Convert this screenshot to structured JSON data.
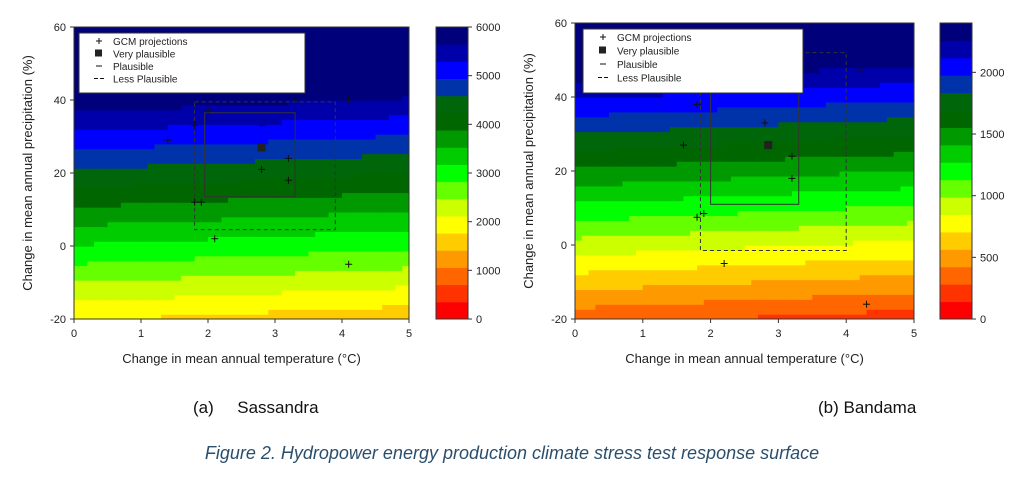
{
  "figure_caption": "Figure 2. Hydropower energy production climate stress test response surface",
  "colors": {
    "scale": [
      "#ff0000",
      "#ff3300",
      "#ff6600",
      "#ff9900",
      "#ffcc00",
      "#ffff00",
      "#ccff00",
      "#66ff00",
      "#00ff00",
      "#00cc00",
      "#009900",
      "#006600",
      "#00660a",
      "#0033aa",
      "#0000ff",
      "#0000aa",
      "#00007a"
    ]
  },
  "legend_items": [
    {
      "symbol": "+",
      "label": "GCM projections"
    },
    {
      "symbol": "■",
      "label": "Very plausible"
    },
    {
      "symbol": "–",
      "label": "Plausible"
    },
    {
      "symbol": "--",
      "label": "Less Plausible"
    }
  ],
  "chart_data": [
    {
      "id": "sassandra",
      "type": "heatmap",
      "caption_label": "(a)",
      "caption_name": "Sassandra",
      "xlabel": "Change in mean annual temperature (°C)",
      "ylabel": "Change in mean annual precipitation (%)",
      "xlim": [
        0,
        5
      ],
      "ylim": [
        -20,
        60
      ],
      "xticks": [
        0,
        1,
        2,
        3,
        4,
        5
      ],
      "yticks": [
        -20,
        0,
        20,
        40,
        60
      ],
      "colorbar": {
        "min": 0,
        "max": 6000,
        "ticks": [
          0,
          1000,
          2000,
          3000,
          4000,
          5000,
          6000
        ]
      },
      "surface": {
        "base": 3150,
        "per_pct_precip": 68,
        "per_deg_temp": -55
      },
      "gcm_projections": [
        {
          "x": 1.4,
          "y": 29
        },
        {
          "x": 1.8,
          "y": 33
        },
        {
          "x": 2.0,
          "y": 37
        },
        {
          "x": 2.8,
          "y": 33
        },
        {
          "x": 2.8,
          "y": 21
        },
        {
          "x": 3.2,
          "y": 24
        },
        {
          "x": 3.2,
          "y": 18
        },
        {
          "x": 3.3,
          "y": 40
        },
        {
          "x": 4.1,
          "y": 40
        },
        {
          "x": 1.8,
          "y": 12
        },
        {
          "x": 1.9,
          "y": 12
        },
        {
          "x": 2.1,
          "y": 2
        },
        {
          "x": 4.1,
          "y": -5
        }
      ],
      "very_plausible": {
        "x": 2.8,
        "y": 27
      },
      "plausible_box": {
        "x": [
          1.95,
          3.3
        ],
        "y": [
          13.5,
          36.5
        ]
      },
      "less_plausible_box": {
        "x": [
          1.8,
          3.9
        ],
        "y": [
          4.5,
          39.5
        ]
      }
    },
    {
      "id": "bandama",
      "type": "heatmap",
      "caption_label": "(b)",
      "caption_name": "Bandama",
      "xlabel": "Change in mean annual temperature (°C)",
      "ylabel": "Change in mean annual precipitation (%)",
      "xlim": [
        0,
        5
      ],
      "ylim": [
        -20,
        60
      ],
      "xticks": [
        0,
        1,
        2,
        3,
        4,
        5
      ],
      "yticks": [
        -20,
        0,
        20,
        40,
        60
      ],
      "colorbar": {
        "min": 0,
        "max": 2400,
        "ticks": [
          0,
          500,
          1000,
          1500,
          2000
        ]
      },
      "surface": {
        "base": 930,
        "per_pct_precip": 30,
        "per_deg_temp": -25
      },
      "gcm_projections": [
        {
          "x": 1.6,
          "y": 27
        },
        {
          "x": 1.8,
          "y": 38
        },
        {
          "x": 2.8,
          "y": 33
        },
        {
          "x": 3.2,
          "y": 24
        },
        {
          "x": 3.2,
          "y": 18
        },
        {
          "x": 4.2,
          "y": 47
        },
        {
          "x": 1.8,
          "y": 7.5
        },
        {
          "x": 1.9,
          "y": 8.5
        },
        {
          "x": 2.2,
          "y": -5
        },
        {
          "x": 4.3,
          "y": -16
        }
      ],
      "very_plausible": {
        "x": 2.85,
        "y": 27
      },
      "plausible_box": {
        "x": [
          2.0,
          3.3
        ],
        "y": [
          11,
          44
        ]
      },
      "less_plausible_box": {
        "x": [
          1.85,
          4.0
        ],
        "y": [
          -1.5,
          52
        ]
      }
    }
  ]
}
